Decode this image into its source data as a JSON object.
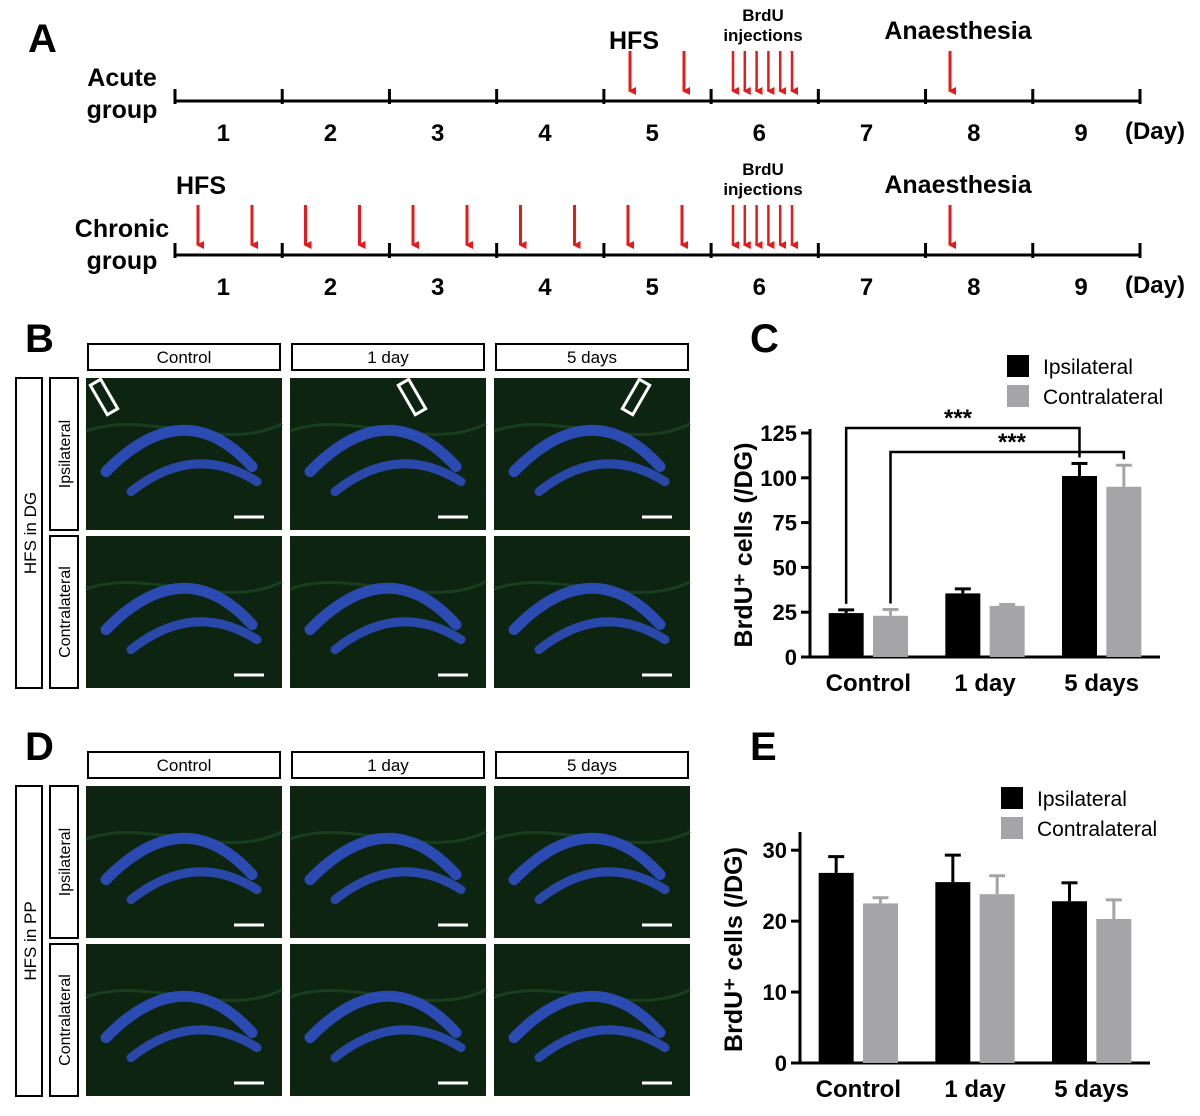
{
  "panel_labels": [
    "A",
    "B",
    "C",
    "D",
    "E"
  ],
  "timeline": {
    "acute_label": [
      "Acute",
      "group"
    ],
    "chronic_label": [
      "Chronic",
      "group"
    ],
    "days": [
      "1",
      "2",
      "3",
      "4",
      "5",
      "6",
      "7",
      "8",
      "9"
    ],
    "day_unit": "(Day)",
    "hfs": "HFS",
    "brdu": [
      "BrdU",
      "injections"
    ],
    "anaesthesia": "Anaesthesia"
  },
  "panel_b": {
    "columns": [
      "Control",
      "1 day",
      "5 days"
    ],
    "rows": [
      "Ipsilateral",
      "Contralateral"
    ],
    "group_label": "HFS in DG"
  },
  "panel_d": {
    "columns": [
      "Control",
      "1 day",
      "5 days"
    ],
    "rows": [
      "Ipsilateral",
      "Contralateral"
    ],
    "group_label": "HFS in PP"
  },
  "colors": {
    "ipsilateral": "#000000",
    "contralateral": "#a5a5a8",
    "arrow": "#e41a1c",
    "tissue": "#0c2410",
    "nuclei": "#2f4fc4"
  },
  "chart_data": [
    {
      "type": "bar",
      "panel": "C",
      "categories": [
        "Control",
        "1 day",
        "5 days"
      ],
      "series": [
        {
          "name": "Ipsilateral",
          "values": [
            24.5,
            35.5,
            101
          ],
          "errors": [
            1.8,
            2.5,
            7
          ]
        },
        {
          "name": "Contralateral",
          "values": [
            23,
            28.5,
            95
          ],
          "errors": [
            3.5,
            0.8,
            12
          ]
        }
      ],
      "ylabel": "BrdU⁺ cells (/DG)",
      "yticks": [
        0,
        25,
        50,
        75,
        100,
        125
      ],
      "ylim": [
        0,
        125
      ],
      "significance": [
        "***",
        "***"
      ],
      "legend": "top-right"
    },
    {
      "type": "bar",
      "panel": "E",
      "categories": [
        "Control",
        "1 day",
        "5 days"
      ],
      "series": [
        {
          "name": "Ipsilateral",
          "values": [
            26.8,
            25.5,
            22.8
          ],
          "errors": [
            2.3,
            3.8,
            2.6
          ]
        },
        {
          "name": "Contralateral",
          "values": [
            22.5,
            23.8,
            20.3
          ],
          "errors": [
            0.8,
            2.6,
            2.7
          ]
        }
      ],
      "ylabel": "BrdU⁺ cells (/DG)",
      "yticks": [
        0,
        10,
        20,
        30
      ],
      "ylim": [
        0,
        32
      ],
      "legend": "top-right"
    }
  ]
}
